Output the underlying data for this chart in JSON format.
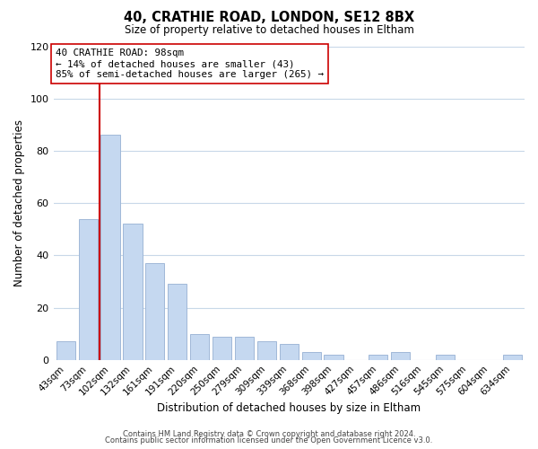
{
  "title": "40, CRATHIE ROAD, LONDON, SE12 8BX",
  "subtitle": "Size of property relative to detached houses in Eltham",
  "xlabel": "Distribution of detached houses by size in Eltham",
  "ylabel": "Number of detached properties",
  "bar_labels": [
    "43sqm",
    "73sqm",
    "102sqm",
    "132sqm",
    "161sqm",
    "191sqm",
    "220sqm",
    "250sqm",
    "279sqm",
    "309sqm",
    "339sqm",
    "368sqm",
    "398sqm",
    "427sqm",
    "457sqm",
    "486sqm",
    "516sqm",
    "545sqm",
    "575sqm",
    "604sqm",
    "634sqm"
  ],
  "bar_values": [
    7,
    54,
    86,
    52,
    37,
    29,
    10,
    9,
    9,
    7,
    6,
    3,
    2,
    0,
    2,
    3,
    0,
    2,
    0,
    0,
    2
  ],
  "bar_color": "#c5d8f0",
  "bar_edge_color": "#a0b8d8",
  "vline_x_index": 1.5,
  "vline_color": "#cc0000",
  "annotation_text": "40 CRATHIE ROAD: 98sqm\n← 14% of detached houses are smaller (43)\n85% of semi-detached houses are larger (265) →",
  "annotation_box_color": "#ffffff",
  "annotation_box_edge": "#cc0000",
  "ylim": [
    0,
    120
  ],
  "yticks": [
    0,
    20,
    40,
    60,
    80,
    100,
    120
  ],
  "footer_line1": "Contains HM Land Registry data © Crown copyright and database right 2024.",
  "footer_line2": "Contains public sector information licensed under the Open Government Licence v3.0.",
  "background_color": "#ffffff",
  "grid_color": "#c8d8e8"
}
